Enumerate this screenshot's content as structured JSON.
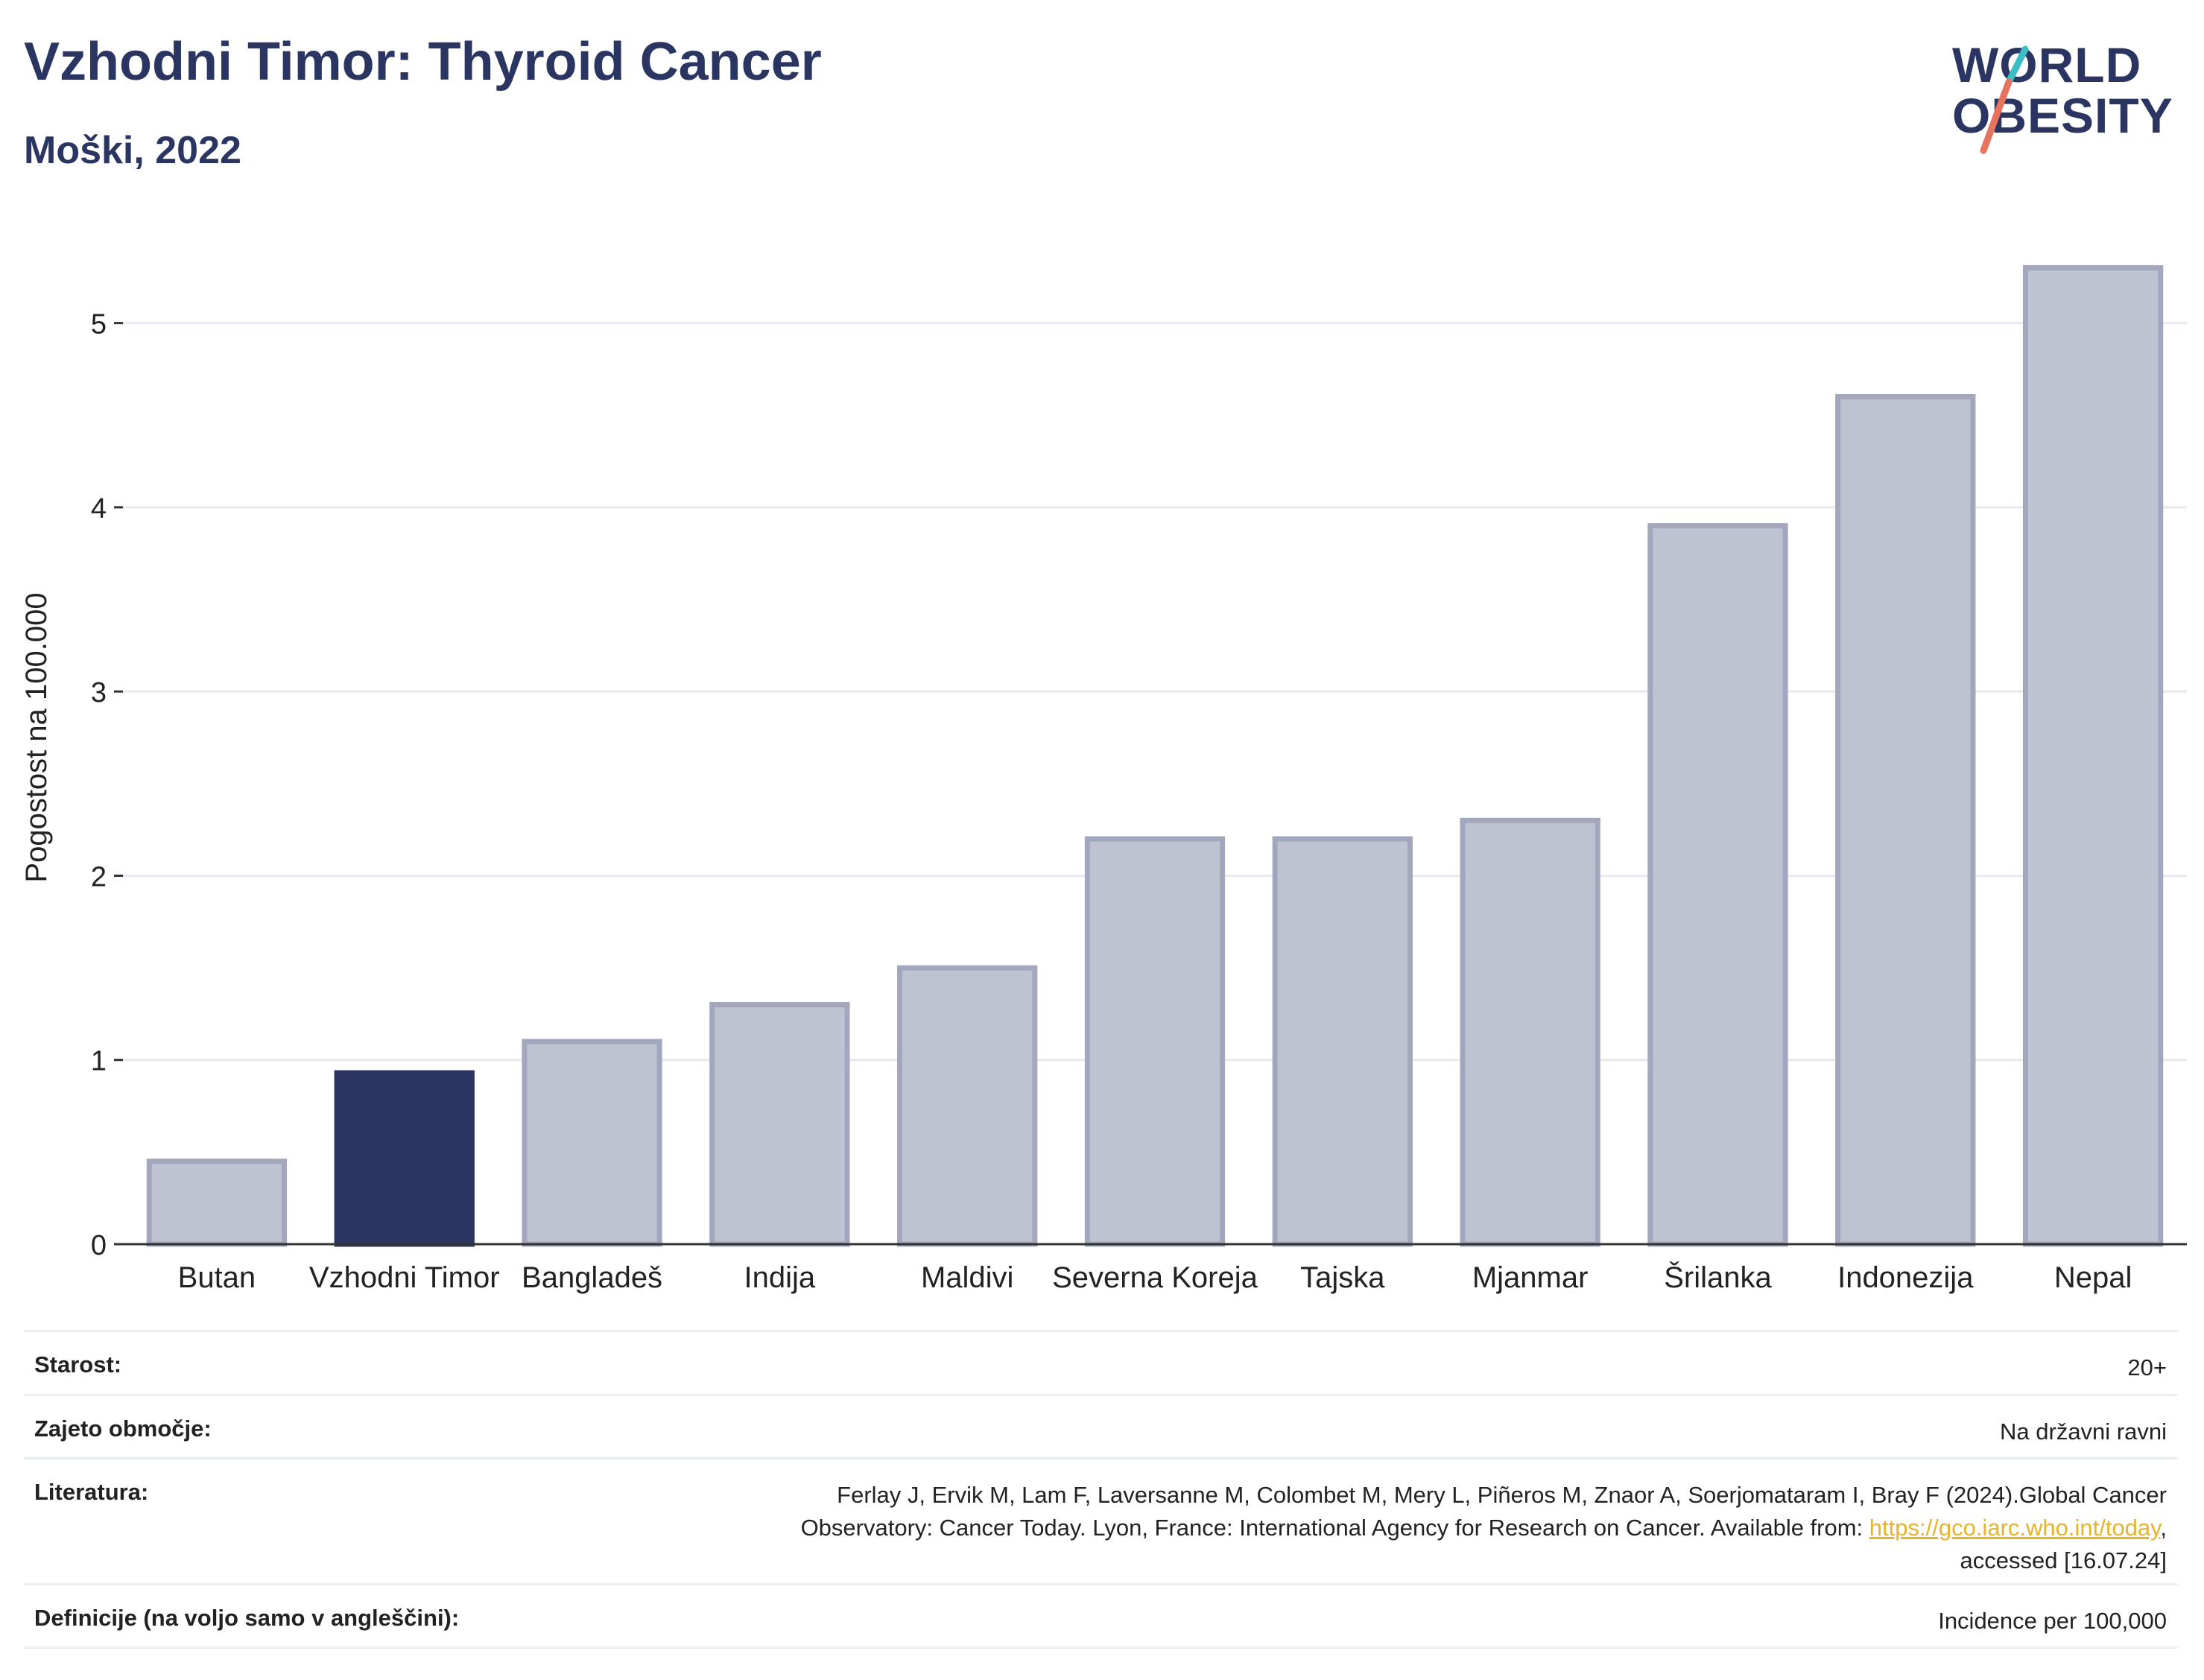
{
  "header": {
    "title": "Vzhodni Timor: Thyroid Cancer",
    "subtitle": "Moški, 2022"
  },
  "logo": {
    "line1": "WORLD",
    "line2": "OBESITY",
    "colors": {
      "text": "#2b3561",
      "slash_top": "#3bbfc4",
      "slash_bottom": "#e5735e"
    }
  },
  "colors": {
    "highlight": "#2b3561",
    "bar": "#bfc2d0",
    "bar_stroke": "#a2a7be",
    "grid": "#e6e9ef"
  },
  "chart_data": {
    "type": "bar",
    "categories": [
      "Butan",
      "Vzhodni Timor",
      "Bangladeš",
      "Indija",
      "Maldivi",
      "Severna Koreja",
      "Tajska",
      "Mjanmar",
      "Šrilanka",
      "Indonezija",
      "Nepal"
    ],
    "values": [
      0.45,
      0.93,
      1.1,
      1.3,
      1.5,
      2.2,
      2.2,
      2.3,
      3.9,
      4.6,
      5.3
    ],
    "highlight": "Vzhodni Timor",
    "ylabel": "Pogostost na 100.000",
    "xlabel": "",
    "ylim": [
      0,
      5.5
    ],
    "yticks": [
      0,
      1,
      2,
      3,
      4,
      5
    ],
    "grid": true
  },
  "meta": {
    "age_label": "Starost:",
    "age_value": "20+",
    "coverage_label": "Zajeto območje:",
    "coverage_value": "Na državni ravni",
    "literature_label": "Literatura:",
    "literature_line1": "Ferlay J, Ervik M, Lam F, Laversanne M, Colombet M, Mery L, Piñeros M, Znaor A, Soerjomataram I, Bray F (2024).Global Cancer",
    "literature_line2_pre": "Observatory: Cancer Today. Lyon, France: International Agency for Research on Cancer. Available from: ",
    "literature_link": "https://gco.iarc.who.int/today",
    "literature_line2_post": ",",
    "literature_line3": "accessed [16.07.24]",
    "definitions_label": "Definicije (na voljo samo v angleščini):",
    "definitions_value": "Incidence per 100,000"
  }
}
